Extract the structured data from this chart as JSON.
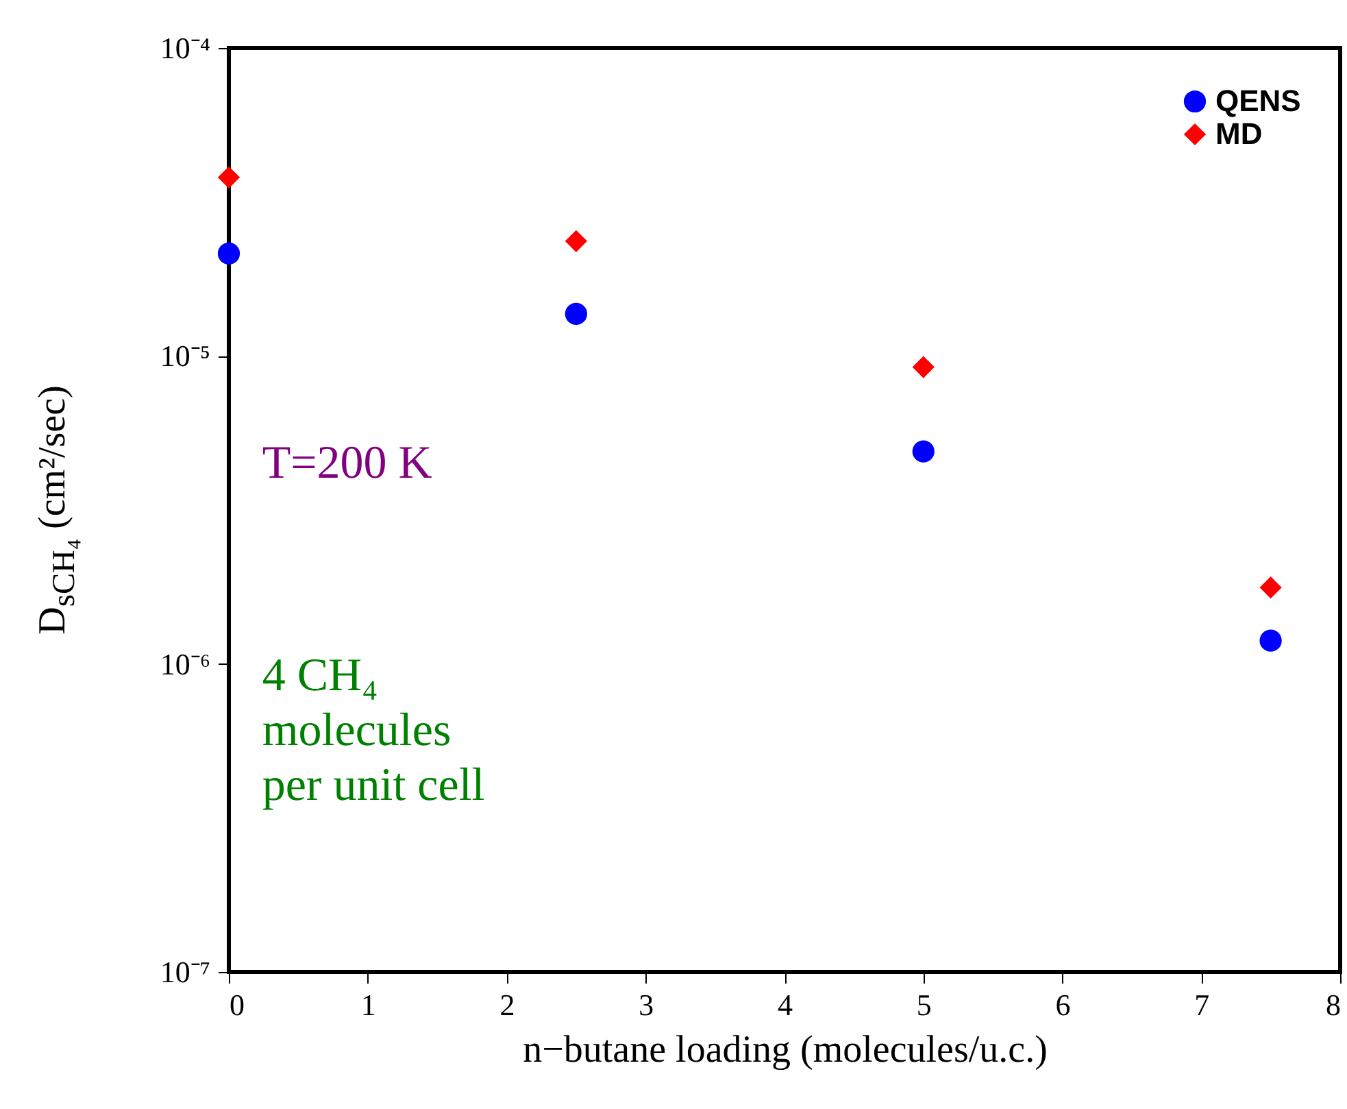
{
  "chart_data": {
    "type": "scatter",
    "x": [
      0,
      2.5,
      5,
      7.5
    ],
    "series": [
      {
        "name": "QENS",
        "color": "#0000ff",
        "marker": "circle",
        "values": [
          2.15e-05,
          1.37e-05,
          4.9e-06,
          1.19e-06
        ]
      },
      {
        "name": "MD",
        "color": "#ff0000",
        "marker": "diamond",
        "values": [
          3.8e-05,
          2.36e-05,
          9.2e-06,
          1.77e-06
        ]
      }
    ],
    "xlabel": "n−butane loading (molecules/u.c.)",
    "ylabel": "D$_{sCH₄}$ (cm²/sec)",
    "xlim": [
      0,
      8
    ],
    "xticks": [
      0,
      1,
      2,
      3,
      4,
      5,
      6,
      7,
      8
    ],
    "ylim": [
      1e-07,
      0.0001
    ],
    "log": true,
    "yticks": [
      {
        "value": 1e-07,
        "label": "10⁻⁷"
      },
      {
        "value": 1e-06,
        "label": "10⁻⁶"
      },
      {
        "value": 1e-05,
        "label": "10⁻⁵"
      },
      {
        "value": 0.0001,
        "label": "10⁻⁴"
      }
    ],
    "annotations": [
      {
        "text": "T=200 K"
      },
      {
        "text": "4 CH₄\nmolecules\nper unit cell"
      }
    ],
    "legend": "top right",
    "grid": false
  }
}
